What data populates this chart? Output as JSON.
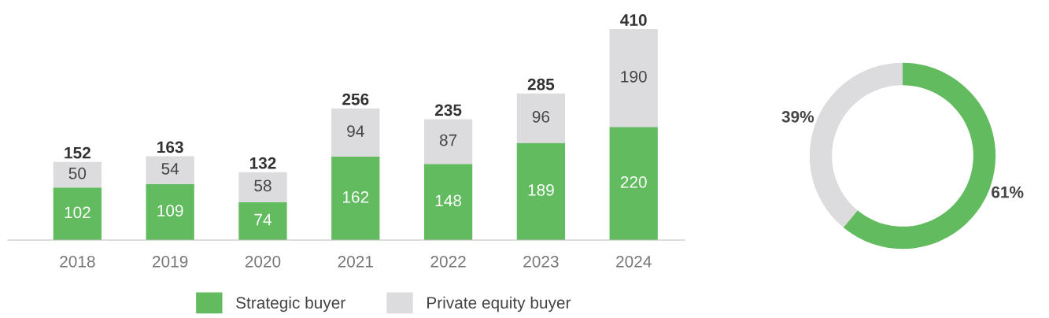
{
  "chart_data": [
    {
      "type": "bar",
      "stacked": true,
      "categories": [
        "2018",
        "2019",
        "2020",
        "2021",
        "2022",
        "2023",
        "2024"
      ],
      "series": [
        {
          "name": "Strategic buyer",
          "color": "#62bb5e",
          "values": [
            102,
            109,
            74,
            162,
            148,
            189,
            220
          ]
        },
        {
          "name": "Private equity buyer",
          "color": "#dcdcde",
          "values": [
            50,
            54,
            58,
            94,
            87,
            96,
            190
          ]
        }
      ],
      "data_labels": true,
      "totals": [
        "152",
        "163",
        "132",
        "256",
        "235",
        "285",
        "410"
      ],
      "legend": "bottom"
    },
    {
      "type": "donut",
      "categories": [
        null,
        null
      ],
      "values": [
        61,
        39
      ],
      "colors": [
        "#62bb5e",
        "#dcdcde"
      ],
      "value_labels": [
        "61%",
        "39%"
      ]
    }
  ]
}
